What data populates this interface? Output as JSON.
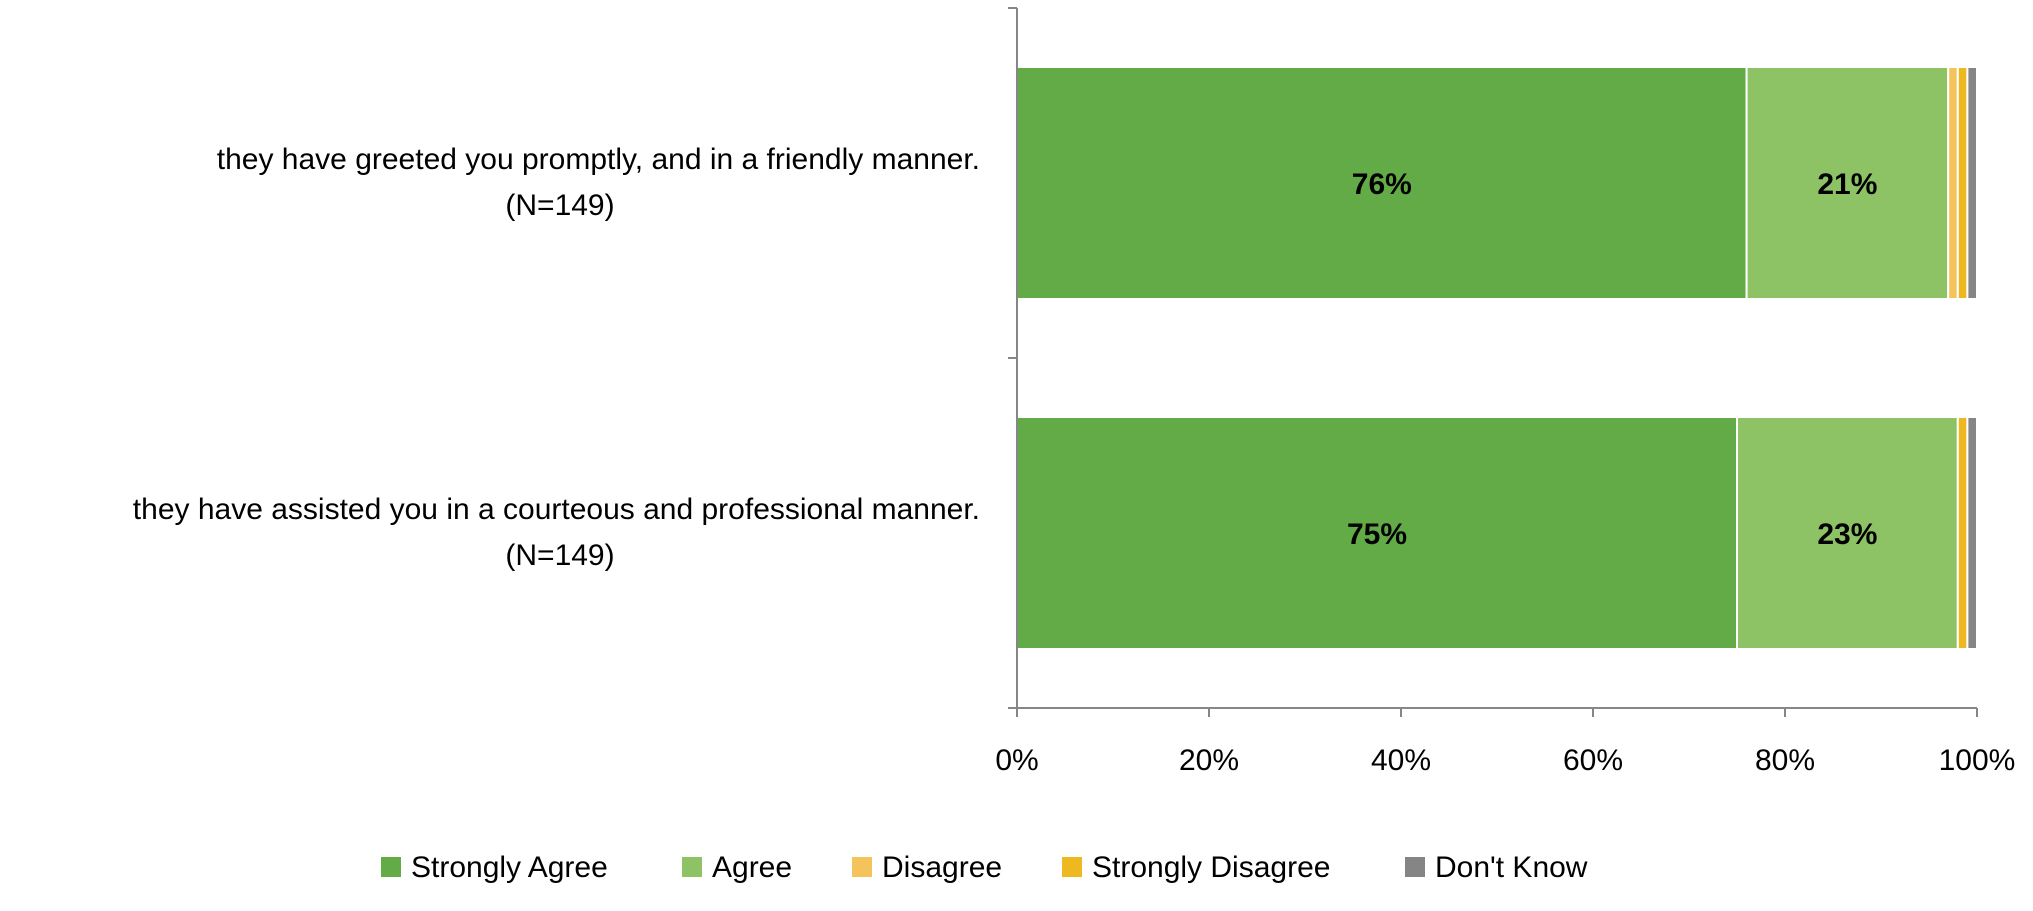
{
  "chart_data": {
    "type": "bar",
    "orientation": "horizontal",
    "stacked": true,
    "categories": [
      [
        "they have greeted you promptly, and in a friendly manner.",
        "(N=149)"
      ],
      [
        "they have assisted you in a courteous and professional manner.",
        "(N=149)"
      ]
    ],
    "series": [
      {
        "name": "Strongly Agree",
        "color": "#62ab47",
        "values": [
          76,
          75
        ],
        "labels": [
          "76%",
          "75%"
        ]
      },
      {
        "name": "Agree",
        "color": "#8dc265",
        "values": [
          21,
          23
        ],
        "labels": [
          "21%",
          "23%"
        ]
      },
      {
        "name": "Disagree",
        "color": "#f5c35c",
        "values": [
          1,
          0
        ],
        "labels": [
          "",
          ""
        ]
      },
      {
        "name": "Strongly Disagree",
        "color": "#edb820",
        "values": [
          1,
          1
        ],
        "labels": [
          "",
          ""
        ]
      },
      {
        "name": "Don't Know",
        "color": "#858585",
        "values": [
          1,
          1
        ],
        "labels": [
          "",
          ""
        ]
      }
    ],
    "x_ticks": [
      "0%",
      "20%",
      "40%",
      "60%",
      "80%",
      "100%"
    ],
    "xlim": [
      0,
      100
    ],
    "grid": false,
    "legend_position": "bottom"
  }
}
